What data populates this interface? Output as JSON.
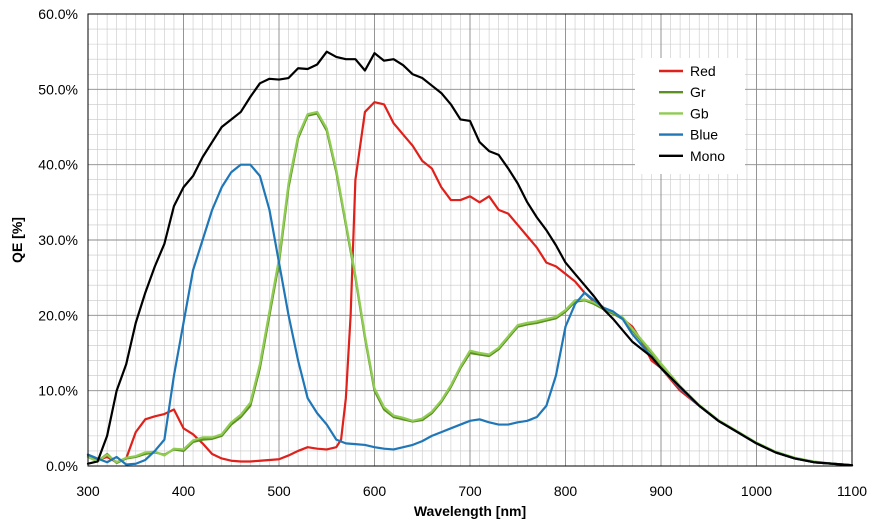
{
  "chart_data": {
    "type": "line",
    "xlabel": "Wavelength [nm]",
    "ylabel": "QE [%]",
    "xlim": [
      300,
      1100
    ],
    "ylim": [
      0,
      60
    ],
    "x_ticks": [
      300,
      400,
      500,
      600,
      700,
      800,
      900,
      1000,
      1100
    ],
    "x_tick_labels": [
      "300",
      "400",
      "500",
      "600",
      "700",
      "800",
      "900",
      "1000",
      "1100"
    ],
    "y_ticks": [
      0,
      10,
      20,
      30,
      40,
      50,
      60
    ],
    "y_tick_labels": [
      "0.0%",
      "10.0%",
      "20.0%",
      "30.0%",
      "40.0%",
      "50.0%",
      "60.0%"
    ],
    "x_minor_step": 10,
    "y_minor_step": 2,
    "grid": true,
    "legend_position": "top-right",
    "series": [
      {
        "name": "Red",
        "color": "#e0201b",
        "x": [
          300,
          310,
          320,
          330,
          340,
          350,
          360,
          370,
          380,
          390,
          400,
          410,
          420,
          430,
          440,
          450,
          460,
          470,
          480,
          490,
          500,
          510,
          520,
          530,
          540,
          550,
          560,
          565,
          570,
          575,
          580,
          590,
          600,
          610,
          620,
          630,
          640,
          650,
          660,
          670,
          680,
          690,
          700,
          710,
          720,
          730,
          740,
          750,
          760,
          770,
          780,
          790,
          800,
          810,
          820,
          830,
          840,
          850,
          860,
          870,
          880,
          890,
          900,
          920,
          940,
          960,
          980,
          1000,
          1020,
          1040,
          1060,
          1080,
          1100
        ],
        "y": [
          1.5,
          0.8,
          1.2,
          0.5,
          1.0,
          4.5,
          6.2,
          6.6,
          6.9,
          7.5,
          5.0,
          4.2,
          3.0,
          1.6,
          1.0,
          0.7,
          0.6,
          0.6,
          0.7,
          0.8,
          0.9,
          1.4,
          2.0,
          2.5,
          2.3,
          2.2,
          2.5,
          3.5,
          9.0,
          20.0,
          38.0,
          47.0,
          48.3,
          48.0,
          45.5,
          44.0,
          42.5,
          40.5,
          39.5,
          37.0,
          35.3,
          35.3,
          35.8,
          35.0,
          35.8,
          34.0,
          33.5,
          32.0,
          30.5,
          29.0,
          27.0,
          26.5,
          25.5,
          24.5,
          23.0,
          21.8,
          20.8,
          20.3,
          19.5,
          18.5,
          16.5,
          14.0,
          13.0,
          10.0,
          8.0,
          6.0,
          4.5,
          3.0,
          1.8,
          1.0,
          0.5,
          0.3,
          0.1
        ]
      },
      {
        "name": "Gr",
        "color": "#5d8f22",
        "x": [
          300,
          310,
          320,
          330,
          340,
          350,
          360,
          370,
          380,
          390,
          400,
          410,
          420,
          430,
          440,
          450,
          460,
          470,
          480,
          490,
          500,
          510,
          520,
          530,
          540,
          550,
          560,
          570,
          580,
          590,
          600,
          610,
          620,
          630,
          640,
          650,
          660,
          670,
          680,
          690,
          700,
          710,
          720,
          730,
          740,
          750,
          760,
          770,
          780,
          790,
          800,
          810,
          820,
          830,
          840,
          850,
          860,
          870,
          880,
          890,
          900,
          920,
          940,
          960,
          980,
          1000,
          1020,
          1040,
          1060,
          1080,
          1100
        ],
        "y": [
          1.3,
          0.6,
          1.6,
          0.4,
          1.0,
          1.2,
          1.6,
          1.8,
          1.5,
          2.2,
          2.0,
          3.2,
          3.5,
          3.6,
          4.0,
          5.5,
          6.5,
          8.0,
          13.0,
          20.0,
          27.0,
          37.0,
          43.5,
          46.5,
          46.8,
          44.5,
          39.0,
          32.0,
          25.0,
          17.0,
          10.0,
          7.5,
          6.5,
          6.2,
          5.9,
          6.1,
          7.0,
          8.5,
          10.5,
          13.0,
          15.0,
          14.8,
          14.6,
          15.5,
          17.0,
          18.5,
          18.8,
          19.0,
          19.3,
          19.6,
          20.5,
          21.8,
          22.0,
          21.5,
          20.8,
          20.2,
          19.5,
          18.0,
          16.5,
          15.0,
          13.5,
          10.5,
          8.0,
          6.0,
          4.5,
          3.0,
          1.8,
          1.0,
          0.5,
          0.3,
          0.1
        ]
      },
      {
        "name": "Gb",
        "color": "#8fcc52",
        "x": [
          300,
          310,
          320,
          330,
          340,
          350,
          360,
          370,
          380,
          390,
          400,
          410,
          420,
          430,
          440,
          450,
          460,
          470,
          480,
          490,
          500,
          510,
          520,
          530,
          540,
          550,
          560,
          570,
          580,
          590,
          600,
          610,
          620,
          630,
          640,
          650,
          660,
          670,
          680,
          690,
          700,
          710,
          720,
          730,
          740,
          750,
          760,
          770,
          780,
          790,
          800,
          810,
          820,
          830,
          840,
          850,
          860,
          870,
          880,
          890,
          900,
          920,
          940,
          960,
          980,
          1000,
          1020,
          1040,
          1060,
          1080,
          1100
        ],
        "y": [
          1.2,
          0.6,
          1.5,
          0.5,
          1.1,
          1.3,
          1.8,
          1.9,
          1.4,
          2.3,
          2.2,
          3.4,
          3.8,
          3.8,
          4.2,
          5.8,
          6.8,
          8.4,
          13.5,
          20.5,
          27.5,
          37.5,
          43.8,
          46.7,
          47.0,
          44.8,
          39.3,
          32.3,
          25.3,
          17.3,
          10.3,
          7.8,
          6.7,
          6.4,
          6.0,
          6.3,
          7.2,
          8.7,
          10.7,
          13.2,
          15.3,
          15.0,
          14.8,
          15.7,
          17.2,
          18.7,
          19.0,
          19.2,
          19.5,
          19.8,
          20.7,
          22.0,
          22.1,
          21.7,
          21.0,
          20.4,
          19.7,
          18.2,
          16.7,
          15.2,
          13.6,
          10.6,
          8.1,
          6.1,
          4.6,
          3.1,
          1.9,
          1.1,
          0.6,
          0.3,
          0.1
        ]
      },
      {
        "name": "Blue",
        "color": "#1f77b8",
        "x": [
          300,
          310,
          320,
          330,
          340,
          350,
          360,
          370,
          380,
          390,
          400,
          410,
          420,
          430,
          440,
          450,
          460,
          470,
          480,
          490,
          500,
          510,
          520,
          530,
          540,
          550,
          560,
          570,
          580,
          590,
          600,
          610,
          620,
          630,
          640,
          650,
          660,
          670,
          680,
          690,
          700,
          710,
          720,
          730,
          740,
          750,
          760,
          770,
          780,
          790,
          800,
          810,
          820,
          830,
          840,
          850,
          860,
          870,
          880,
          890,
          900,
          920,
          940,
          960,
          980,
          1000,
          1020,
          1040,
          1060,
          1080,
          1100
        ],
        "y": [
          1.5,
          1.0,
          0.5,
          1.2,
          0.2,
          0.3,
          0.8,
          2.0,
          3.5,
          12.0,
          19.0,
          26.0,
          30.0,
          34.0,
          37.0,
          39.0,
          40.0,
          40.0,
          38.5,
          34.0,
          27.0,
          20.0,
          14.0,
          9.0,
          7.0,
          5.5,
          3.5,
          3.0,
          2.9,
          2.8,
          2.5,
          2.3,
          2.2,
          2.5,
          2.8,
          3.3,
          4.0,
          4.5,
          5.0,
          5.5,
          6.0,
          6.2,
          5.8,
          5.5,
          5.5,
          5.8,
          6.0,
          6.5,
          8.0,
          12.0,
          18.5,
          21.5,
          23.0,
          22.0,
          21.0,
          20.5,
          19.5,
          17.5,
          16.0,
          14.5,
          13.0,
          10.3,
          8.0,
          6.0,
          4.5,
          3.0,
          1.8,
          1.0,
          0.5,
          0.3,
          0.1
        ]
      },
      {
        "name": "Mono",
        "color": "#000000",
        "x": [
          300,
          310,
          320,
          330,
          340,
          350,
          360,
          370,
          380,
          390,
          400,
          410,
          420,
          430,
          440,
          450,
          460,
          470,
          480,
          490,
          500,
          510,
          520,
          530,
          540,
          550,
          560,
          570,
          580,
          590,
          600,
          610,
          620,
          630,
          640,
          650,
          660,
          670,
          680,
          690,
          700,
          710,
          720,
          730,
          740,
          750,
          760,
          770,
          780,
          790,
          800,
          810,
          820,
          830,
          840,
          850,
          860,
          870,
          880,
          890,
          900,
          920,
          940,
          960,
          980,
          1000,
          1020,
          1040,
          1060,
          1080,
          1100
        ],
        "y": [
          0.3,
          0.6,
          4.0,
          10.0,
          13.5,
          19.0,
          23.0,
          26.5,
          29.5,
          34.5,
          37.0,
          38.5,
          41.0,
          43.0,
          45.0,
          46.0,
          47.0,
          49.0,
          50.8,
          51.4,
          51.3,
          51.5,
          52.8,
          52.7,
          53.3,
          55.0,
          54.3,
          54.0,
          54.0,
          52.5,
          54.8,
          53.8,
          54.0,
          53.2,
          52.0,
          51.5,
          50.5,
          49.5,
          48.0,
          46.0,
          45.8,
          43.0,
          41.8,
          41.3,
          39.5,
          37.5,
          35.0,
          33.0,
          31.3,
          29.3,
          27.0,
          25.5,
          24.0,
          22.5,
          20.8,
          19.5,
          18.0,
          16.5,
          15.5,
          14.5,
          13.0,
          10.5,
          8.0,
          6.0,
          4.5,
          3.0,
          1.8,
          1.0,
          0.5,
          0.3,
          0.1
        ]
      }
    ]
  }
}
